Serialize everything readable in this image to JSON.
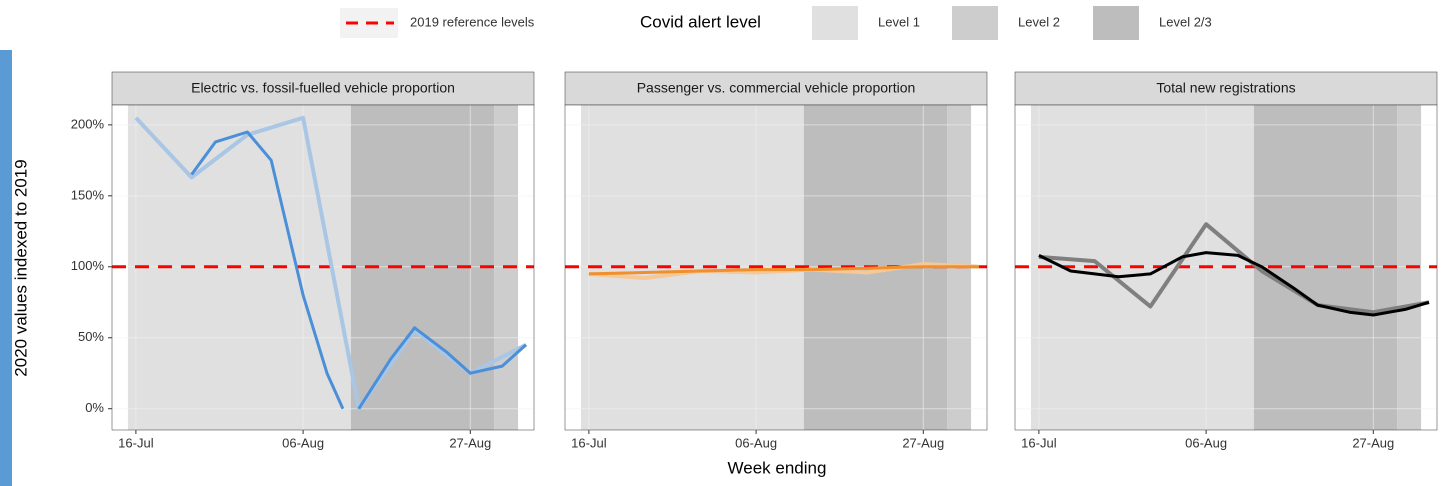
{
  "y_label": "2020 values indexed to 2019",
  "x_label": "Week ending",
  "reference_line": {
    "name": "2019 reference levels",
    "value": 100,
    "color": "#ff0000"
  },
  "alert_levels": {
    "title": "Covid alert level",
    "levels": [
      {
        "name": "Level 1",
        "color": "#e0e0e0",
        "periods": [
          [
            "15-Jul",
            "12-Aug"
          ]
        ]
      },
      {
        "name": "Level 2",
        "color": "#cdcdcd",
        "periods": [
          [
            "30-Aug",
            "02-Sep"
          ]
        ]
      },
      {
        "name": "Level 2/3",
        "color": "#bdbdbd",
        "periods": [
          [
            "12-Aug",
            "30-Aug"
          ]
        ]
      }
    ]
  },
  "chart_data": [
    {
      "type": "line",
      "title": "Electric vs. fossil-fuelled vehicle proportion",
      "xlim": [
        "13-Jul",
        "04-Sep"
      ],
      "xticks": [
        "16-Jul",
        "06-Aug",
        "27-Aug"
      ],
      "ylim": [
        -15,
        214
      ],
      "yticks": [
        {
          "value": 0,
          "label": "0%"
        },
        {
          "value": 50,
          "label": "50%"
        },
        {
          "value": 100,
          "label": "100%"
        },
        {
          "value": 150,
          "label": "150%"
        },
        {
          "value": 200,
          "label": "200%"
        }
      ],
      "series": [
        {
          "color": "#a9c6e5",
          "x": [
            "16-Jul",
            "23-Jul",
            "30-Jul",
            "06-Aug",
            "13-Aug",
            "20-Aug",
            "27-Aug",
            "03-Sep"
          ],
          "values": [
            205,
            163,
            193,
            205,
            0,
            55,
            25,
            45
          ]
        },
        {
          "color": "#4a8fd8",
          "x": [
            "23-Jul",
            "26-Jul",
            "30-Jul",
            "02-Aug",
            "06-Aug",
            "09-Aug",
            "11-Aug",
            "12-Aug",
            "13-Aug",
            "17-Aug",
            "20-Aug",
            "24-Aug",
            "27-Aug",
            "31-Aug",
            "03-Sep"
          ],
          "values": [
            165,
            188,
            195,
            175,
            80,
            25,
            0,
            null,
            0,
            35,
            57,
            40,
            25,
            30,
            45
          ]
        }
      ]
    },
    {
      "type": "line",
      "title": "Passenger vs. commercial vehicle proportion",
      "xlim": [
        "13-Jul",
        "04-Sep"
      ],
      "xticks": [
        "16-Jul",
        "06-Aug",
        "27-Aug"
      ],
      "ylim": [
        -15,
        214
      ],
      "yticks": [
        0,
        50,
        100,
        150,
        200
      ],
      "series": [
        {
          "color": "#f5c896",
          "x": [
            "16-Jul",
            "23-Jul",
            "30-Jul",
            "06-Aug",
            "13-Aug",
            "20-Aug",
            "27-Aug",
            "03-Sep"
          ],
          "values": [
            95,
            92,
            97,
            96,
            98,
            96,
            102,
            100
          ]
        },
        {
          "color": "#ef8f2e",
          "x": [
            "16-Jul",
            "23-Jul",
            "30-Jul",
            "06-Aug",
            "13-Aug",
            "20-Aug",
            "27-Aug",
            "03-Sep"
          ],
          "values": [
            95,
            96,
            97,
            98,
            98,
            99,
            100,
            100
          ]
        }
      ]
    },
    {
      "type": "line",
      "title": "Total new registrations",
      "xlim": [
        "13-Jul",
        "04-Sep"
      ],
      "xticks": [
        "16-Jul",
        "06-Aug",
        "27-Aug"
      ],
      "ylim": [
        -15,
        214
      ],
      "yticks": [
        0,
        50,
        100,
        150,
        200
      ],
      "series": [
        {
          "color": "#7f7f7f",
          "x": [
            "16-Jul",
            "23-Jul",
            "30-Jul",
            "06-Aug",
            "13-Aug",
            "20-Aug",
            "27-Aug",
            "03-Sep"
          ],
          "values": [
            107,
            104,
            72,
            130,
            97,
            73,
            68,
            75
          ]
        },
        {
          "color": "#000000",
          "x": [
            "16-Jul",
            "20-Jul",
            "26-Jul",
            "30-Jul",
            "03-Aug",
            "06-Aug",
            "10-Aug",
            "13-Aug",
            "17-Aug",
            "20-Aug",
            "24-Aug",
            "27-Aug",
            "31-Aug",
            "03-Sep"
          ],
          "values": [
            108,
            97,
            93,
            95,
            107,
            110,
            108,
            100,
            85,
            73,
            68,
            66,
            70,
            75
          ]
        }
      ]
    }
  ]
}
